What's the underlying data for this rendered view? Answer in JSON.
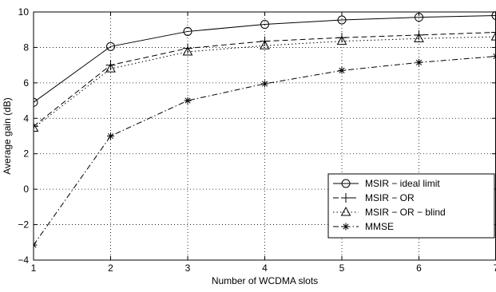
{
  "chart_data": {
    "type": "line",
    "xlabel": "Number of WCDMA slots",
    "ylabel": "Average gain (dB)",
    "xlim": [
      1,
      7
    ],
    "ylim": [
      -4,
      10
    ],
    "x_ticks": [
      1,
      2,
      3,
      4,
      5,
      6,
      7
    ],
    "y_ticks": [
      -4,
      -2,
      0,
      2,
      4,
      6,
      8,
      10
    ],
    "grid": true,
    "legend_position": "lower-right",
    "x": [
      1,
      2,
      3,
      4,
      5,
      6,
      7
    ],
    "series": [
      {
        "name": "MSIR − ideal limit",
        "line_style": "solid",
        "marker": "circle",
        "values": [
          4.9,
          8.05,
          8.9,
          9.3,
          9.55,
          9.7,
          9.8
        ]
      },
      {
        "name": "MSIR − OR",
        "line_style": "dashed",
        "marker": "plus",
        "values": [
          3.55,
          7.0,
          7.95,
          8.35,
          8.55,
          8.7,
          8.85
        ]
      },
      {
        "name": "MSIR − OR − blind",
        "line_style": "dotted",
        "marker": "triangle",
        "values": [
          3.45,
          6.8,
          7.75,
          8.1,
          8.35,
          8.5,
          8.6
        ]
      },
      {
        "name": "MMSE",
        "line_style": "dashdot",
        "marker": "star",
        "values": [
          -3.15,
          3.0,
          5.0,
          5.95,
          6.7,
          7.15,
          7.5
        ]
      }
    ]
  }
}
